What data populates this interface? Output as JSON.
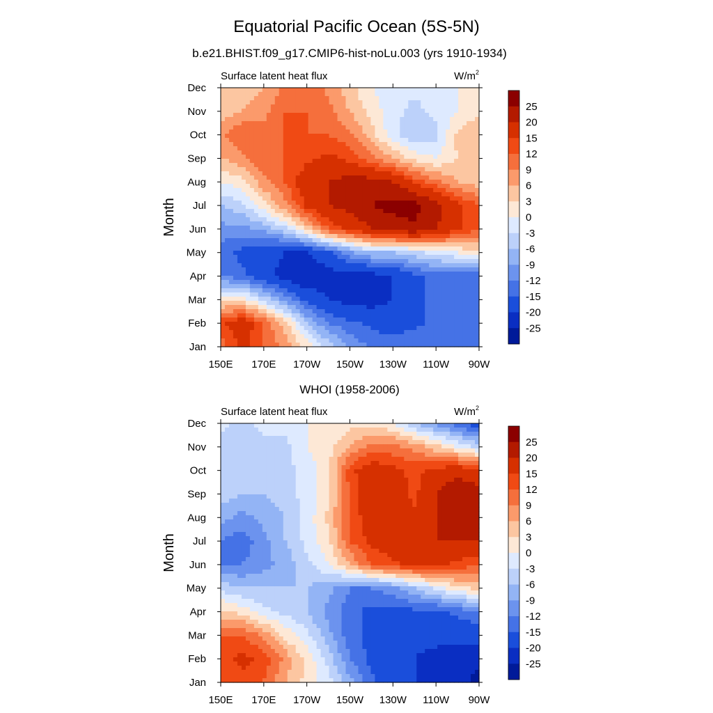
{
  "title": "Equatorial Pacific Ocean (5S-5N)",
  "chart_data": [
    {
      "type": "heatmap",
      "title": "b.e21.BHIST.f09_g17.CMIP6-hist-noLu.003 (yrs 1910-1934)",
      "left_label": "Surface latent heat flux",
      "unit_base": "W/m",
      "unit_exp": "2",
      "ylabel": "Month",
      "x_ticks": [
        "150E",
        "170E",
        "170W",
        "150W",
        "130W",
        "110W",
        "90W"
      ],
      "y_ticks": [
        "Jan",
        "Feb",
        "Mar",
        "Apr",
        "May",
        "Jun",
        "Jul",
        "Aug",
        "Sep",
        "Oct",
        "Nov",
        "Dec"
      ],
      "x_range_lon": [
        150,
        270
      ],
      "grid": false,
      "z_samples": {
        "lon": [
          150,
          160,
          170,
          180,
          190,
          200,
          210,
          220,
          230,
          240,
          250,
          260,
          270
        ],
        "months": [
          "Jan",
          "Feb",
          "Mar",
          "Apr",
          "May",
          "Jun",
          "Jul",
          "Aug",
          "Sep",
          "Oct",
          "Nov",
          "Dec"
        ],
        "values": [
          [
            10,
            16,
            12,
            8,
            2,
            -4,
            -10,
            -12,
            -12,
            -12,
            -12,
            -12,
            -12
          ],
          [
            14,
            18,
            12,
            4,
            -6,
            -12,
            -14,
            -16,
            -18,
            -16,
            -14,
            -14,
            -14
          ],
          [
            2,
            2,
            -4,
            -10,
            -16,
            -20,
            -22,
            -22,
            -20,
            -16,
            -14,
            -14,
            -14
          ],
          [
            -12,
            -14,
            -18,
            -22,
            -25,
            -22,
            -22,
            -22,
            -20,
            -16,
            -14,
            -14,
            -14
          ],
          [
            -14,
            -16,
            -18,
            -20,
            -20,
            -16,
            -10,
            -6,
            -6,
            -4,
            -2,
            0,
            2
          ],
          [
            -10,
            -10,
            -8,
            -4,
            4,
            12,
            16,
            20,
            22,
            24,
            20,
            16,
            12
          ],
          [
            -6,
            -4,
            2,
            8,
            16,
            20,
            22,
            25,
            27,
            27,
            22,
            16,
            12
          ],
          [
            0,
            2,
            8,
            12,
            18,
            20,
            22,
            22,
            20,
            14,
            10,
            6,
            4
          ],
          [
            6,
            8,
            12,
            12,
            14,
            16,
            14,
            10,
            6,
            2,
            0,
            3,
            4
          ],
          [
            8,
            12,
            10,
            12,
            12,
            12,
            10,
            4,
            -2,
            -6,
            -4,
            4,
            6
          ],
          [
            4,
            6,
            8,
            12,
            12,
            10,
            6,
            2,
            -2,
            -4,
            -2,
            0,
            2
          ],
          [
            6,
            4,
            6,
            10,
            12,
            8,
            4,
            0,
            -2,
            -2,
            -2,
            0,
            2
          ]
        ]
      }
    },
    {
      "type": "heatmap",
      "title": "WHOI (1958-2006)",
      "left_label": "Surface latent heat flux",
      "unit_base": "W/m",
      "unit_exp": "2",
      "ylabel": "Month",
      "x_ticks": [
        "150E",
        "170E",
        "170W",
        "150W",
        "130W",
        "110W",
        "90W"
      ],
      "y_ticks": [
        "Jan",
        "Feb",
        "Mar",
        "Apr",
        "May",
        "Jun",
        "Jul",
        "Aug",
        "Sep",
        "Oct",
        "Nov",
        "Dec"
      ],
      "x_range_lon": [
        150,
        270
      ],
      "grid": false,
      "z_samples": {
        "lon": [
          150,
          160,
          170,
          180,
          190,
          200,
          210,
          220,
          230,
          240,
          250,
          260,
          270
        ],
        "months": [
          "Jan",
          "Feb",
          "Mar",
          "Apr",
          "May",
          "Jun",
          "Jul",
          "Aug",
          "Sep",
          "Oct",
          "Nov",
          "Dec"
        ],
        "values": [
          [
            12,
            14,
            12,
            6,
            2,
            -2,
            -8,
            -14,
            -18,
            -20,
            -22,
            -24,
            -26
          ],
          [
            14,
            16,
            14,
            8,
            2,
            -4,
            -12,
            -16,
            -18,
            -20,
            -22,
            -24,
            -24
          ],
          [
            12,
            12,
            8,
            2,
            -2,
            -8,
            -14,
            -16,
            -18,
            -18,
            -18,
            -18,
            -18
          ],
          [
            4,
            2,
            -2,
            -4,
            -6,
            -10,
            -14,
            -16,
            -16,
            -16,
            -16,
            -14,
            -12
          ],
          [
            -4,
            -6,
            -6,
            -6,
            -6,
            -8,
            -12,
            -12,
            -10,
            -6,
            -2,
            2,
            4
          ],
          [
            -12,
            -12,
            -10,
            -8,
            -4,
            0,
            6,
            12,
            14,
            16,
            16,
            14,
            12
          ],
          [
            -12,
            -14,
            -10,
            -6,
            -2,
            2,
            12,
            16,
            18,
            20,
            20,
            20,
            20
          ],
          [
            -8,
            -10,
            -8,
            -6,
            -2,
            4,
            12,
            18,
            18,
            16,
            20,
            22,
            22
          ],
          [
            -4,
            -6,
            -6,
            -4,
            -2,
            2,
            12,
            20,
            18,
            14,
            20,
            24,
            22
          ],
          [
            -6,
            -6,
            -4,
            -4,
            -2,
            2,
            14,
            18,
            16,
            14,
            16,
            18,
            16
          ],
          [
            -4,
            -6,
            -4,
            -4,
            0,
            2,
            6,
            10,
            10,
            8,
            4,
            0,
            -4
          ],
          [
            -2,
            -4,
            -2,
            -2,
            0,
            0,
            2,
            2,
            0,
            -6,
            -10,
            -14,
            -18
          ]
        ]
      }
    }
  ],
  "colorbar": {
    "labels": [
      "25",
      "20",
      "15",
      "12",
      "9",
      "6",
      "3",
      "0",
      "-3",
      "-6",
      "-9",
      "-12",
      "-15",
      "-20",
      "-25"
    ],
    "levels": [
      -25,
      -20,
      -15,
      -12,
      -9,
      -6,
      -3,
      0,
      3,
      6,
      9,
      12,
      15,
      20,
      25
    ],
    "colors_top_to_bottom": [
      "#8b0000",
      "#b31a00",
      "#d63000",
      "#f04a14",
      "#f56f3c",
      "#fb9a6b",
      "#fcc6a1",
      "#fde8d6",
      "#deeaff",
      "#bcd1fa",
      "#93b4f5",
      "#6c93ee",
      "#4572e6",
      "#1a4edb",
      "#0a2ec2",
      "#001a99"
    ]
  }
}
